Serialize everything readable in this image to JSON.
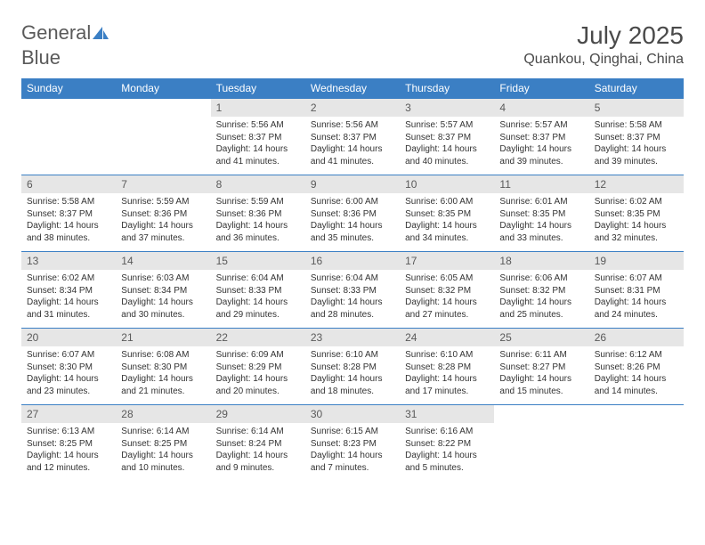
{
  "logo": {
    "text1": "General",
    "text2": "Blue",
    "text1_color": "#5a5a5a",
    "text2_color": "#3b7fc4",
    "icon_color": "#3b7fc4"
  },
  "header": {
    "month_title": "July 2025",
    "location": "Quankou, Qinghai, China"
  },
  "colors": {
    "header_bg": "#3b7fc4",
    "header_text": "#ffffff",
    "daynum_bg": "#e6e6e6",
    "daynum_text": "#5a5a5a",
    "body_text": "#333333",
    "rule": "#3b7fc4"
  },
  "day_names": [
    "Sunday",
    "Monday",
    "Tuesday",
    "Wednesday",
    "Thursday",
    "Friday",
    "Saturday"
  ],
  "weeks": [
    [
      null,
      null,
      {
        "n": "1",
        "sr": "Sunrise: 5:56 AM",
        "ss": "Sunset: 8:37 PM",
        "d1": "Daylight: 14 hours",
        "d2": "and 41 minutes."
      },
      {
        "n": "2",
        "sr": "Sunrise: 5:56 AM",
        "ss": "Sunset: 8:37 PM",
        "d1": "Daylight: 14 hours",
        "d2": "and 41 minutes."
      },
      {
        "n": "3",
        "sr": "Sunrise: 5:57 AM",
        "ss": "Sunset: 8:37 PM",
        "d1": "Daylight: 14 hours",
        "d2": "and 40 minutes."
      },
      {
        "n": "4",
        "sr": "Sunrise: 5:57 AM",
        "ss": "Sunset: 8:37 PM",
        "d1": "Daylight: 14 hours",
        "d2": "and 39 minutes."
      },
      {
        "n": "5",
        "sr": "Sunrise: 5:58 AM",
        "ss": "Sunset: 8:37 PM",
        "d1": "Daylight: 14 hours",
        "d2": "and 39 minutes."
      }
    ],
    [
      {
        "n": "6",
        "sr": "Sunrise: 5:58 AM",
        "ss": "Sunset: 8:37 PM",
        "d1": "Daylight: 14 hours",
        "d2": "and 38 minutes."
      },
      {
        "n": "7",
        "sr": "Sunrise: 5:59 AM",
        "ss": "Sunset: 8:36 PM",
        "d1": "Daylight: 14 hours",
        "d2": "and 37 minutes."
      },
      {
        "n": "8",
        "sr": "Sunrise: 5:59 AM",
        "ss": "Sunset: 8:36 PM",
        "d1": "Daylight: 14 hours",
        "d2": "and 36 minutes."
      },
      {
        "n": "9",
        "sr": "Sunrise: 6:00 AM",
        "ss": "Sunset: 8:36 PM",
        "d1": "Daylight: 14 hours",
        "d2": "and 35 minutes."
      },
      {
        "n": "10",
        "sr": "Sunrise: 6:00 AM",
        "ss": "Sunset: 8:35 PM",
        "d1": "Daylight: 14 hours",
        "d2": "and 34 minutes."
      },
      {
        "n": "11",
        "sr": "Sunrise: 6:01 AM",
        "ss": "Sunset: 8:35 PM",
        "d1": "Daylight: 14 hours",
        "d2": "and 33 minutes."
      },
      {
        "n": "12",
        "sr": "Sunrise: 6:02 AM",
        "ss": "Sunset: 8:35 PM",
        "d1": "Daylight: 14 hours",
        "d2": "and 32 minutes."
      }
    ],
    [
      {
        "n": "13",
        "sr": "Sunrise: 6:02 AM",
        "ss": "Sunset: 8:34 PM",
        "d1": "Daylight: 14 hours",
        "d2": "and 31 minutes."
      },
      {
        "n": "14",
        "sr": "Sunrise: 6:03 AM",
        "ss": "Sunset: 8:34 PM",
        "d1": "Daylight: 14 hours",
        "d2": "and 30 minutes."
      },
      {
        "n": "15",
        "sr": "Sunrise: 6:04 AM",
        "ss": "Sunset: 8:33 PM",
        "d1": "Daylight: 14 hours",
        "d2": "and 29 minutes."
      },
      {
        "n": "16",
        "sr": "Sunrise: 6:04 AM",
        "ss": "Sunset: 8:33 PM",
        "d1": "Daylight: 14 hours",
        "d2": "and 28 minutes."
      },
      {
        "n": "17",
        "sr": "Sunrise: 6:05 AM",
        "ss": "Sunset: 8:32 PM",
        "d1": "Daylight: 14 hours",
        "d2": "and 27 minutes."
      },
      {
        "n": "18",
        "sr": "Sunrise: 6:06 AM",
        "ss": "Sunset: 8:32 PM",
        "d1": "Daylight: 14 hours",
        "d2": "and 25 minutes."
      },
      {
        "n": "19",
        "sr": "Sunrise: 6:07 AM",
        "ss": "Sunset: 8:31 PM",
        "d1": "Daylight: 14 hours",
        "d2": "and 24 minutes."
      }
    ],
    [
      {
        "n": "20",
        "sr": "Sunrise: 6:07 AM",
        "ss": "Sunset: 8:30 PM",
        "d1": "Daylight: 14 hours",
        "d2": "and 23 minutes."
      },
      {
        "n": "21",
        "sr": "Sunrise: 6:08 AM",
        "ss": "Sunset: 8:30 PM",
        "d1": "Daylight: 14 hours",
        "d2": "and 21 minutes."
      },
      {
        "n": "22",
        "sr": "Sunrise: 6:09 AM",
        "ss": "Sunset: 8:29 PM",
        "d1": "Daylight: 14 hours",
        "d2": "and 20 minutes."
      },
      {
        "n": "23",
        "sr": "Sunrise: 6:10 AM",
        "ss": "Sunset: 8:28 PM",
        "d1": "Daylight: 14 hours",
        "d2": "and 18 minutes."
      },
      {
        "n": "24",
        "sr": "Sunrise: 6:10 AM",
        "ss": "Sunset: 8:28 PM",
        "d1": "Daylight: 14 hours",
        "d2": "and 17 minutes."
      },
      {
        "n": "25",
        "sr": "Sunrise: 6:11 AM",
        "ss": "Sunset: 8:27 PM",
        "d1": "Daylight: 14 hours",
        "d2": "and 15 minutes."
      },
      {
        "n": "26",
        "sr": "Sunrise: 6:12 AM",
        "ss": "Sunset: 8:26 PM",
        "d1": "Daylight: 14 hours",
        "d2": "and 14 minutes."
      }
    ],
    [
      {
        "n": "27",
        "sr": "Sunrise: 6:13 AM",
        "ss": "Sunset: 8:25 PM",
        "d1": "Daylight: 14 hours",
        "d2": "and 12 minutes."
      },
      {
        "n": "28",
        "sr": "Sunrise: 6:14 AM",
        "ss": "Sunset: 8:25 PM",
        "d1": "Daylight: 14 hours",
        "d2": "and 10 minutes."
      },
      {
        "n": "29",
        "sr": "Sunrise: 6:14 AM",
        "ss": "Sunset: 8:24 PM",
        "d1": "Daylight: 14 hours",
        "d2": "and 9 minutes."
      },
      {
        "n": "30",
        "sr": "Sunrise: 6:15 AM",
        "ss": "Sunset: 8:23 PM",
        "d1": "Daylight: 14 hours",
        "d2": "and 7 minutes."
      },
      {
        "n": "31",
        "sr": "Sunrise: 6:16 AM",
        "ss": "Sunset: 8:22 PM",
        "d1": "Daylight: 14 hours",
        "d2": "and 5 minutes."
      },
      null,
      null
    ]
  ]
}
